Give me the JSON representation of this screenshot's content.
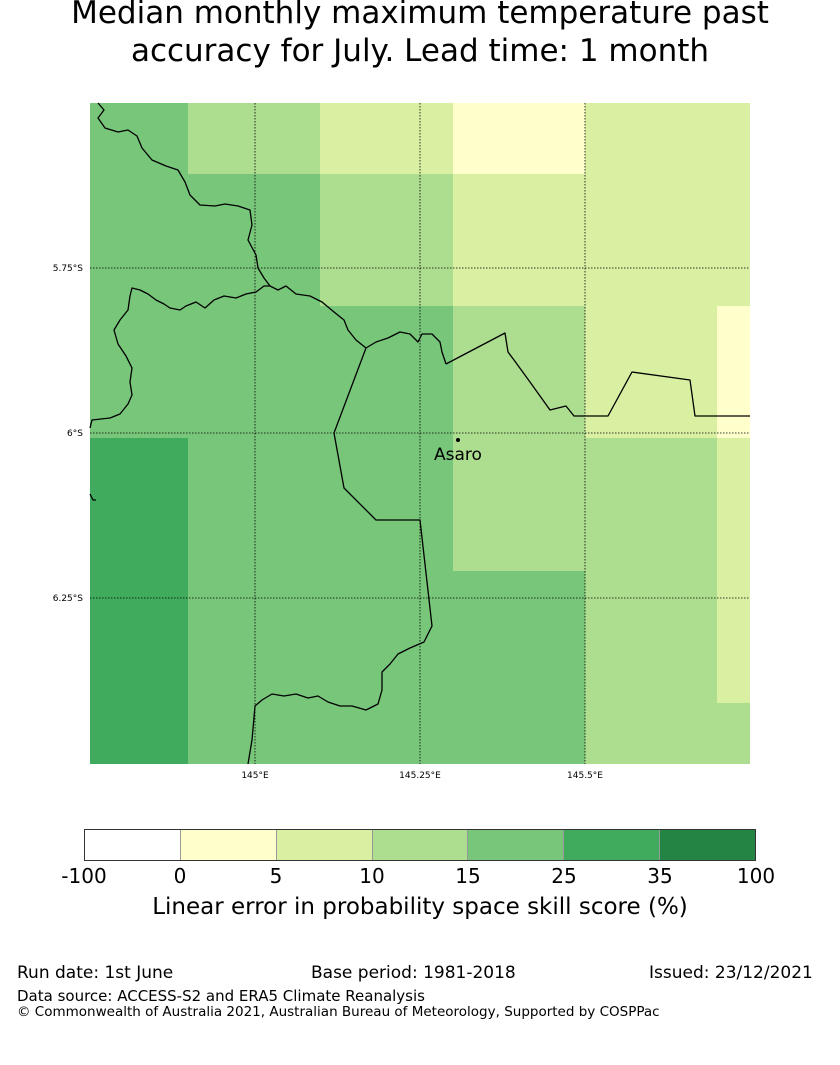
{
  "title_line1": "Median monthly maximum temperature past",
  "title_line2": "accuracy for July. Lead time: 1 month",
  "map": {
    "lat_labels": [
      "5.75°S",
      "6°S",
      "6.25°S"
    ],
    "lon_labels": [
      "145°E",
      "145.25°E",
      "145.5°E"
    ],
    "place": "Asaro",
    "colors": {
      "c0": "#ffffcc",
      "c5": "#d9f0a3",
      "c10": "#addd8e",
      "c15": "#78c679",
      "c25": "#41ab5d",
      "c35": "#238443"
    }
  },
  "colorbar": {
    "label": "Linear error in probability space skill score (%)",
    "ticks": [
      "-100",
      "0",
      "5",
      "10",
      "15",
      "25",
      "35",
      "100"
    ],
    "colors": [
      "#ffffff",
      "#ffffcc",
      "#d9f0a3",
      "#addd8e",
      "#78c679",
      "#41ab5d",
      "#238443"
    ]
  },
  "footer": {
    "run_date": "Run date: 1st June",
    "base_period": "Base period: 1981-2018",
    "issued": "Issued: 23/12/2021",
    "data_source": "Data source: ACCESS-S2 and ERA5 Climate Reanalysis",
    "copyright": "© Commonwealth of Australia 2021, Australian Bureau of Meteorology, Supported by COSPPac"
  }
}
